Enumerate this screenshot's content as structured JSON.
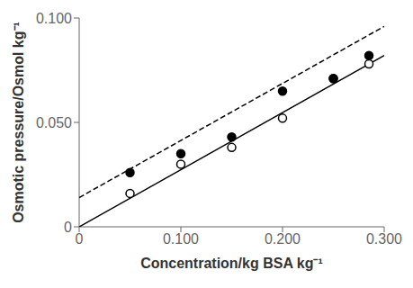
{
  "chart_data": {
    "type": "scatter",
    "xlabel": "Concentration/kg BSA kg⁻¹",
    "ylabel": "Osmotic pressure/Osmol kg⁻¹",
    "xlim": [
      0,
      0.3
    ],
    "ylim": [
      0,
      0.1
    ],
    "xticks": [
      0,
      {
        "value": 0.1,
        "label": "0.100"
      },
      {
        "value": 0.2,
        "label": "0.200"
      },
      {
        "value": 0.3,
        "label": "0.300"
      }
    ],
    "yticks": [
      0,
      {
        "value": 0.05,
        "label": "0.050"
      },
      {
        "value": 0.1,
        "label": "0.100"
      }
    ],
    "grid": false,
    "series": [
      {
        "type": "line",
        "line_style": "solid",
        "color": "#000000",
        "x": [
          0.0,
          0.3
        ],
        "values": [
          0.0,
          0.082
        ]
      },
      {
        "type": "line",
        "line_style": "dashed",
        "color": "#000000",
        "x": [
          0.0,
          0.3
        ],
        "values": [
          0.014,
          0.096
        ]
      },
      {
        "type": "scatter",
        "marker": "open_circle",
        "color": "#000000",
        "x": [
          0.05,
          0.1,
          0.15,
          0.2,
          0.25,
          0.285
        ],
        "values": [
          0.016,
          0.03,
          0.038,
          0.052,
          0.071,
          0.078
        ]
      },
      {
        "type": "scatter",
        "marker": "filled_circle",
        "color": "#000000",
        "x": [
          0.05,
          0.1,
          0.15,
          0.2,
          0.25,
          0.285
        ],
        "values": [
          0.026,
          0.035,
          0.043,
          0.065,
          0.071,
          0.082
        ]
      }
    ]
  }
}
